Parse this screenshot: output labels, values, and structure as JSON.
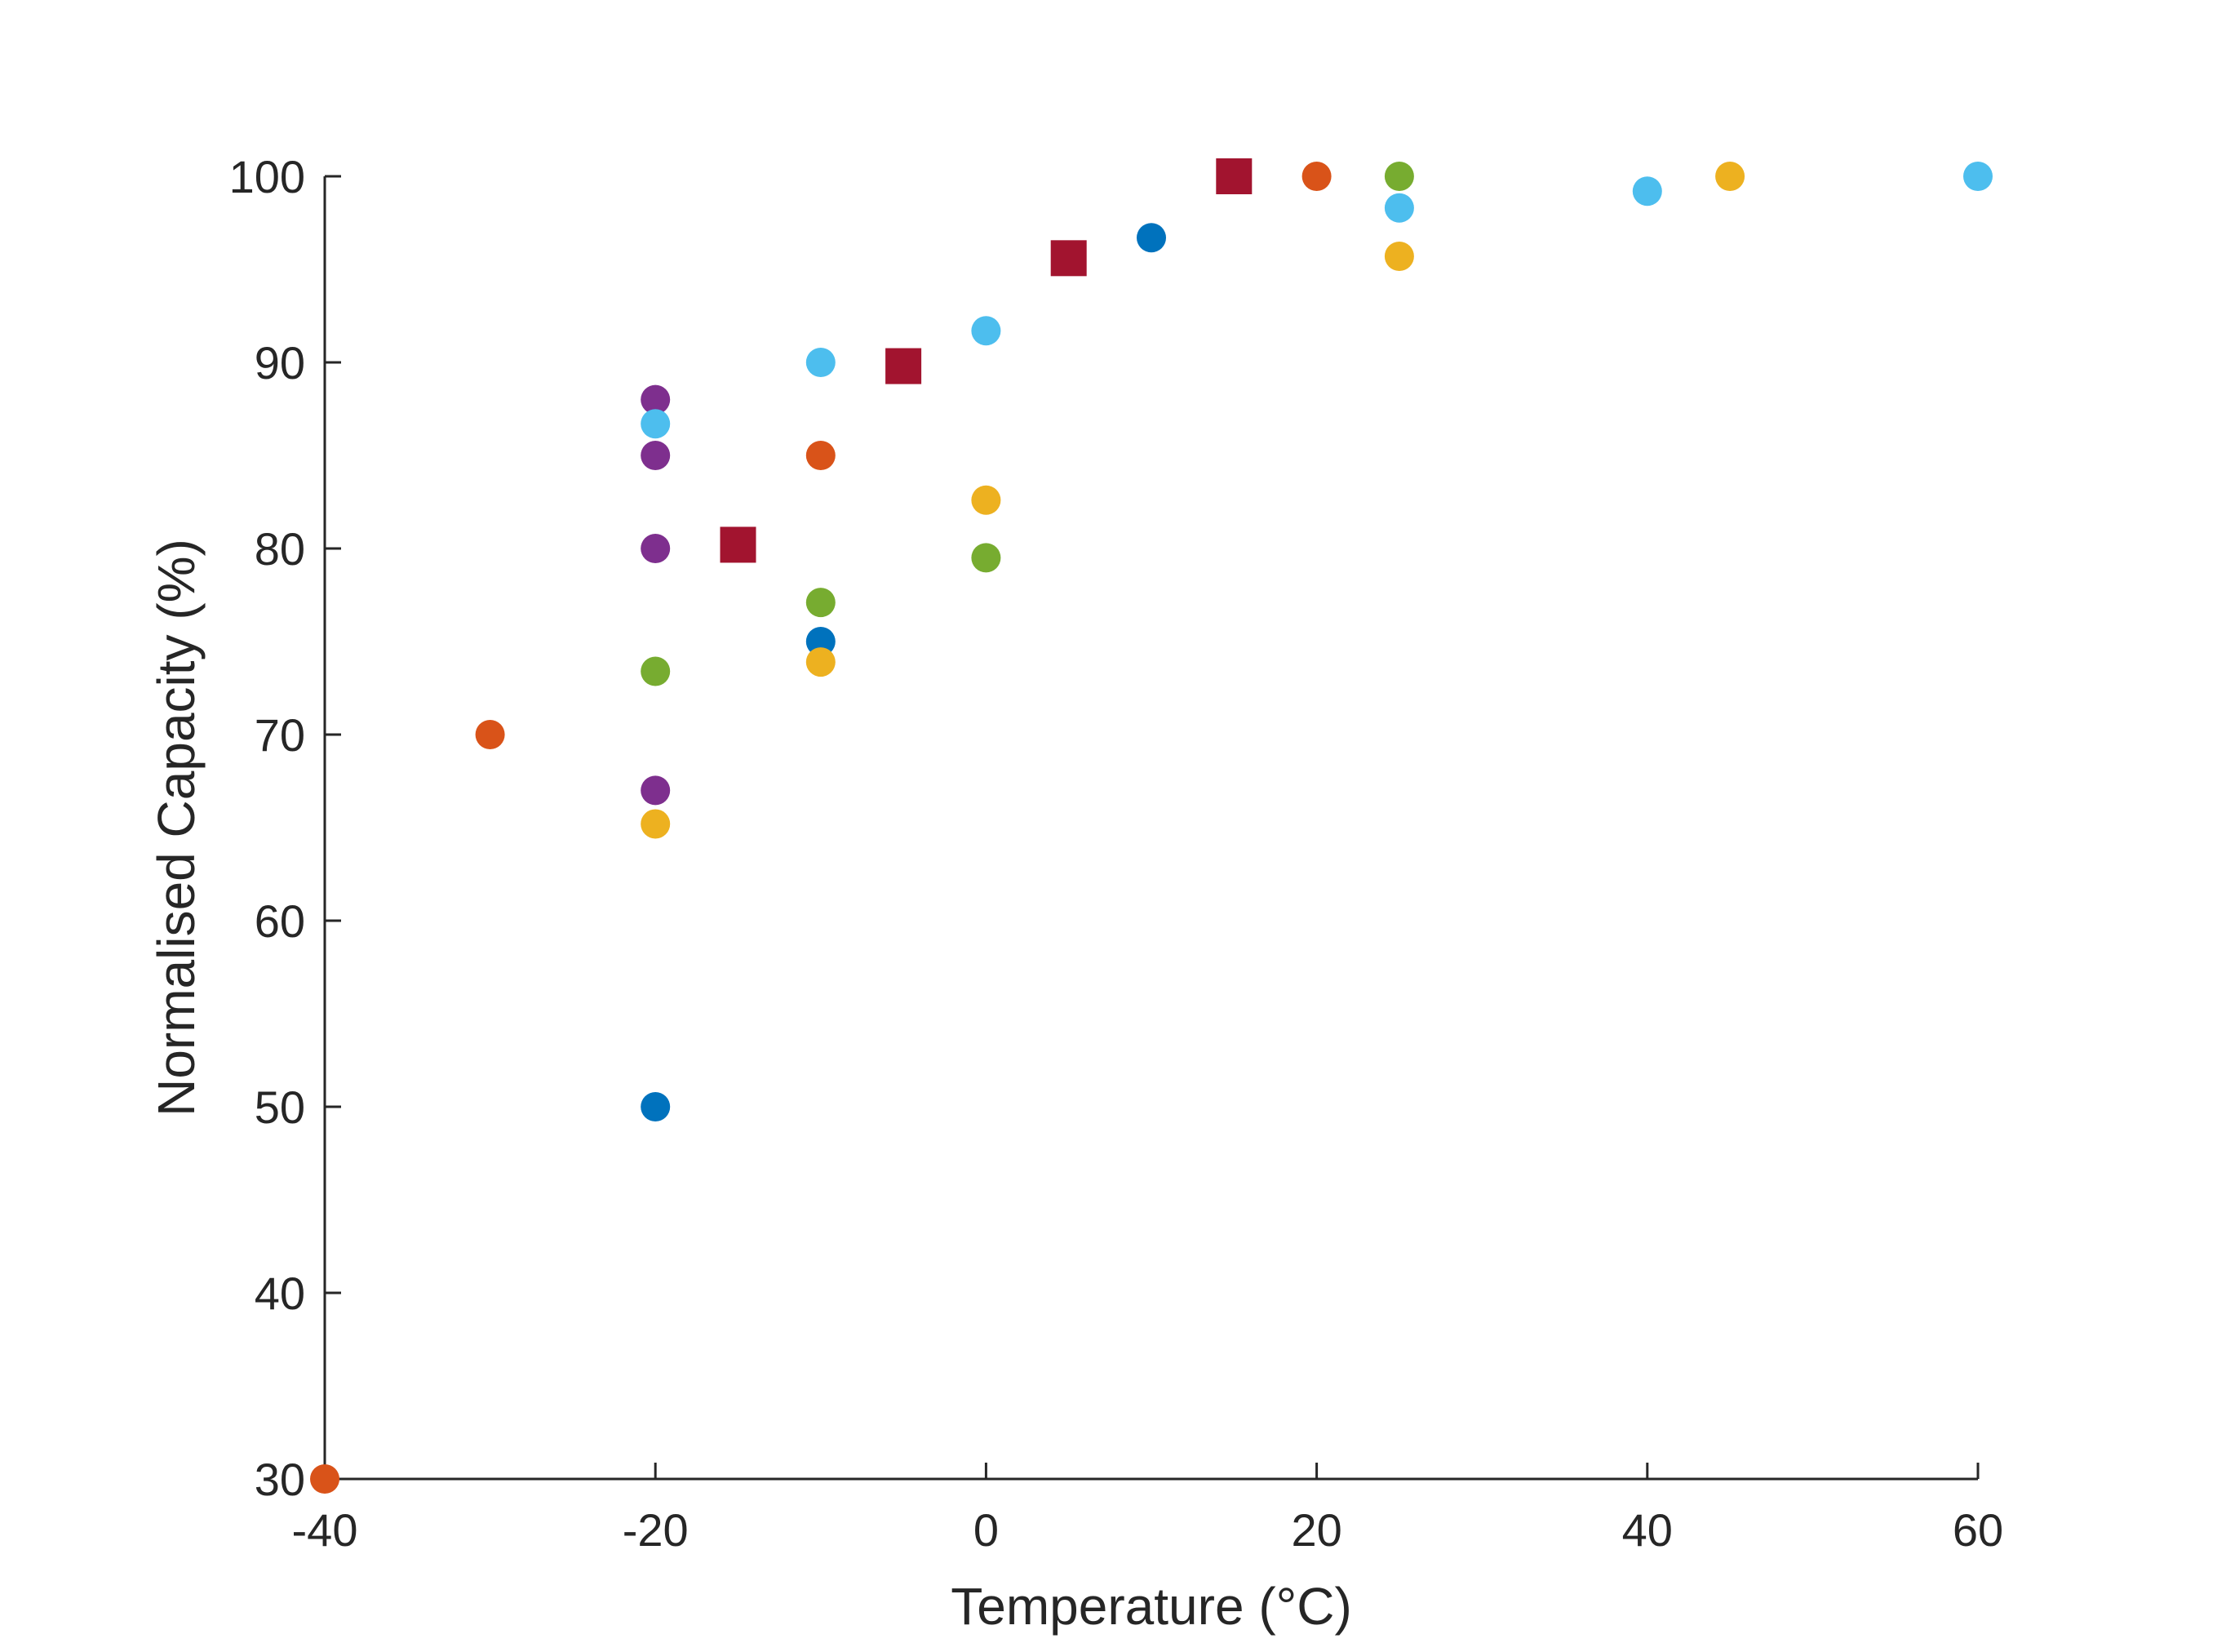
{
  "chart_data": {
    "type": "scatter",
    "title": "",
    "xlabel": "Temperature (°C)",
    "ylabel": "Normalised Capacity (%)",
    "xlim": [
      -40,
      60
    ],
    "ylim": [
      30,
      100
    ],
    "xticks": [
      -40,
      -20,
      0,
      20,
      40,
      60
    ],
    "yticks": [
      30,
      40,
      50,
      60,
      70,
      80,
      90,
      100
    ],
    "x_tick_labels": [
      "-40",
      "-20",
      "0",
      "20",
      "40",
      "60"
    ],
    "y_tick_labels": [
      "30",
      "40",
      "50",
      "60",
      "70",
      "80",
      "90",
      "100"
    ],
    "grid": false,
    "legend": null,
    "series": [
      {
        "name": "series-blue",
        "color": "#0072BD",
        "marker": "circle",
        "points": [
          [
            -20,
            50
          ],
          [
            -10,
            75
          ],
          [
            10,
            96.7
          ]
        ]
      },
      {
        "name": "series-orange",
        "color": "#D95319",
        "marker": "circle",
        "points": [
          [
            -40,
            30
          ],
          [
            -30,
            70
          ],
          [
            -10,
            85
          ],
          [
            20,
            100
          ]
        ]
      },
      {
        "name": "series-yellow",
        "color": "#EDB120",
        "marker": "circle",
        "points": [
          [
            -20,
            65.2
          ],
          [
            -10,
            73.9
          ],
          [
            0,
            82.6
          ],
          [
            25,
            95.7
          ],
          [
            45,
            100
          ]
        ]
      },
      {
        "name": "series-purple",
        "color": "#7E2F8E",
        "marker": "circle",
        "points": [
          [
            -20,
            88
          ],
          [
            -20,
            85
          ],
          [
            -20,
            80
          ],
          [
            -20,
            67
          ]
        ]
      },
      {
        "name": "series-green",
        "color": "#77AC30",
        "marker": "circle",
        "points": [
          [
            -20,
            73.4
          ],
          [
            -10,
            77.1
          ],
          [
            0,
            79.5
          ],
          [
            25,
            100
          ]
        ]
      },
      {
        "name": "series-light-blue",
        "color": "#4DBEEE",
        "marker": "circle",
        "points": [
          [
            -20,
            86.7
          ],
          [
            -10,
            90
          ],
          [
            0,
            91.7
          ],
          [
            25,
            98.3
          ],
          [
            40,
            99.2
          ],
          [
            60,
            100
          ]
        ]
      },
      {
        "name": "series-crimson",
        "color": "#A2142F",
        "marker": "square",
        "points": [
          [
            -15,
            80.2
          ],
          [
            -5,
            89.8
          ],
          [
            5,
            95.6
          ],
          [
            15,
            100
          ]
        ]
      }
    ]
  }
}
